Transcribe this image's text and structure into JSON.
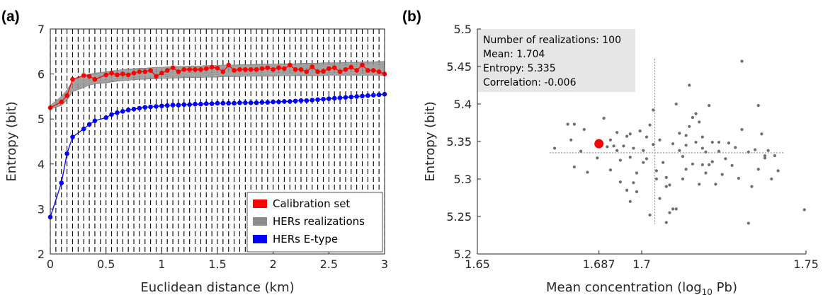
{
  "chart_data": [
    {
      "panel": "(a)",
      "type": "line",
      "xlabel": "Euclidean distance (km)",
      "ylabel": "Entropy (bit)",
      "xlim": [
        0,
        3
      ],
      "ylim": [
        2,
        7
      ],
      "xticks": [
        "0",
        "0.5",
        "1",
        "1.5",
        "2",
        "2.5",
        "3"
      ],
      "yticks": [
        "2",
        "3",
        "4",
        "5",
        "6",
        "7"
      ],
      "grid": "vertical dashed lines at each lag",
      "legend_position": "bottom-right",
      "x": [
        0.0,
        0.1,
        0.15,
        0.2,
        0.3,
        0.35,
        0.4,
        0.5,
        0.55,
        0.6,
        0.65,
        0.7,
        0.75,
        0.8,
        0.85,
        0.9,
        0.95,
        1.0,
        1.05,
        1.1,
        1.15,
        1.2,
        1.25,
        1.3,
        1.35,
        1.4,
        1.45,
        1.5,
        1.55,
        1.6,
        1.65,
        1.7,
        1.75,
        1.8,
        1.85,
        1.9,
        1.95,
        2.0,
        2.05,
        2.1,
        2.15,
        2.2,
        2.25,
        2.3,
        2.35,
        2.4,
        2.45,
        2.5,
        2.55,
        2.6,
        2.65,
        2.7,
        2.75,
        2.8,
        2.85,
        2.9,
        2.95,
        3.0
      ],
      "series": [
        {
          "name": "Calibration set",
          "color": "#ff0000",
          "values": [
            5.25,
            5.38,
            5.52,
            5.88,
            5.97,
            5.95,
            5.88,
            5.98,
            6.02,
            5.98,
            6.0,
            5.98,
            6.02,
            6.05,
            6.05,
            6.08,
            5.95,
            6.02,
            6.08,
            6.14,
            6.05,
            6.1,
            6.1,
            6.1,
            6.1,
            6.12,
            6.15,
            6.13,
            6.05,
            6.2,
            6.08,
            6.1,
            6.1,
            6.1,
            6.1,
            6.12,
            6.14,
            6.1,
            6.14,
            6.12,
            6.2,
            6.1,
            6.1,
            6.05,
            6.16,
            6.05,
            6.06,
            6.12,
            6.14,
            6.05,
            6.1,
            6.15,
            6.08,
            6.2,
            6.08,
            6.08,
            6.05,
            6.0
          ]
        },
        {
          "name": "HERs realizations",
          "color": "#8c8c8c",
          "band_lower": [
            5.22,
            5.3,
            5.42,
            5.6,
            5.7,
            5.75,
            5.78,
            5.8,
            5.82,
            5.84,
            5.85,
            5.86,
            5.87,
            5.88,
            5.88,
            5.89,
            5.89,
            5.9,
            5.9,
            5.91,
            5.91,
            5.92,
            5.92,
            5.92,
            5.92,
            5.93,
            5.93,
            5.93,
            5.94,
            5.94,
            5.94,
            5.94,
            5.95,
            5.95,
            5.95,
            5.95,
            5.95,
            5.95,
            5.96,
            5.96,
            5.96,
            5.96,
            5.96,
            5.96,
            5.96,
            5.96,
            5.96,
            5.97,
            5.97,
            5.97,
            5.97,
            5.97,
            5.97,
            5.97,
            5.97,
            5.97,
            5.97,
            5.97
          ],
          "band_upper": [
            5.3,
            5.5,
            5.65,
            5.85,
            5.97,
            6.0,
            6.02,
            6.05,
            6.07,
            6.08,
            6.1,
            6.11,
            6.12,
            6.13,
            6.13,
            6.14,
            6.15,
            6.15,
            6.16,
            6.16,
            6.17,
            6.17,
            6.18,
            6.18,
            6.18,
            6.19,
            6.19,
            6.19,
            6.2,
            6.2,
            6.2,
            6.21,
            6.21,
            6.21,
            6.22,
            6.22,
            6.22,
            6.22,
            6.23,
            6.23,
            6.23,
            6.23,
            6.24,
            6.24,
            6.24,
            6.24,
            6.25,
            6.25,
            6.25,
            6.25,
            6.26,
            6.26,
            6.26,
            6.27,
            6.27,
            6.27,
            6.28,
            6.28
          ]
        },
        {
          "name": "HERs E-type",
          "color": "#0000ff",
          "values": [
            2.82,
            3.58,
            4.23,
            4.6,
            4.78,
            4.88,
            4.96,
            5.03,
            5.1,
            5.14,
            5.17,
            5.2,
            5.22,
            5.24,
            5.26,
            5.27,
            5.28,
            5.29,
            5.3,
            5.31,
            5.31,
            5.32,
            5.32,
            5.33,
            5.33,
            5.34,
            5.34,
            5.35,
            5.35,
            5.35,
            5.35,
            5.36,
            5.36,
            5.36,
            5.36,
            5.37,
            5.37,
            5.38,
            5.38,
            5.39,
            5.39,
            5.4,
            5.41,
            5.41,
            5.42,
            5.43,
            5.44,
            5.45,
            5.46,
            5.47,
            5.48,
            5.49,
            5.5,
            5.51,
            5.52,
            5.53,
            5.54,
            5.55
          ]
        }
      ]
    },
    {
      "panel": "(b)",
      "type": "scatter",
      "xlabel_main": "Mean concentration (log",
      "xlabel_sub": "10",
      "xlabel_tail": " Pb)",
      "ylabel": "Entropy (bit)",
      "xlim": [
        1.65,
        1.75
      ],
      "ylim": [
        5.2,
        5.5
      ],
      "xticks": [
        "1.65",
        "1.687",
        "1.7",
        "1.75"
      ],
      "yticks": [
        "5.2",
        "5.25",
        "5.3",
        "5.35",
        "5.4",
        "5.45",
        "5.5"
      ],
      "stats_box": [
        "Number of realizations: 100",
        "Mean: 1.704",
        "Entropy: 5.335",
        "Correlation: -0.006"
      ],
      "mean_lines": {
        "x": 1.704,
        "y": 5.335
      },
      "highlight": {
        "x": 1.687,
        "y": 5.347,
        "color": "#ff0000"
      },
      "point_color": "#6e6e6e",
      "points": [
        [
          1.6735,
          5.341
        ],
        [
          1.6775,
          5.373
        ],
        [
          1.6795,
          5.373
        ],
        [
          1.6785,
          5.352
        ],
        [
          1.6815,
          5.337
        ],
        [
          1.6825,
          5.366
        ],
        [
          1.6795,
          5.316
        ],
        [
          1.6835,
          5.309
        ],
        [
          1.6865,
          5.328
        ],
        [
          1.6885,
          5.381
        ],
        [
          1.6905,
          5.352
        ],
        [
          1.6915,
          5.344
        ],
        [
          1.6925,
          5.362
        ],
        [
          1.6935,
          5.325
        ],
        [
          1.6955,
          5.357
        ],
        [
          1.6965,
          5.36
        ],
        [
          1.6975,
          5.341
        ],
        [
          1.6985,
          5.308
        ],
        [
          1.6955,
          5.285
        ],
        [
          1.6995,
          5.364
        ],
        [
          1.7005,
          5.338
        ],
        [
          1.7015,
          5.356
        ],
        [
          1.7025,
          5.372
        ],
        [
          1.7035,
          5.392
        ],
        [
          1.7015,
          5.327
        ],
        [
          1.6975,
          5.295
        ],
        [
          1.6935,
          5.296
        ],
        [
          1.7045,
          5.311
        ],
        [
          1.7065,
          5.322
        ],
        [
          1.7075,
          5.302
        ],
        [
          1.6985,
          5.283
        ],
        [
          1.6965,
          5.27
        ],
        [
          1.7025,
          5.252
        ],
        [
          1.7055,
          5.274
        ],
        [
          1.7045,
          5.3
        ],
        [
          1.7075,
          5.29
        ],
        [
          1.7085,
          5.292
        ],
        [
          1.7075,
          5.242
        ],
        [
          1.7085,
          5.255
        ],
        [
          1.7095,
          5.26
        ],
        [
          1.7105,
          5.26
        ],
        [
          1.7095,
          5.347
        ],
        [
          1.7115,
          5.338
        ],
        [
          1.7125,
          5.33
        ],
        [
          1.7135,
          5.358
        ],
        [
          1.7145,
          5.37
        ],
        [
          1.7155,
          5.382
        ],
        [
          1.7165,
          5.387
        ],
        [
          1.7175,
          5.376
        ],
        [
          1.7165,
          5.349
        ],
        [
          1.7185,
          5.341
        ],
        [
          1.7195,
          5.336
        ],
        [
          1.7155,
          5.32
        ],
        [
          1.7135,
          5.313
        ],
        [
          1.7125,
          5.3
        ],
        [
          1.7175,
          5.293
        ],
        [
          1.7185,
          5.319
        ],
        [
          1.7205,
          5.319
        ],
        [
          1.7225,
          5.293
        ],
        [
          1.7215,
          5.349
        ],
        [
          1.7235,
          5.349
        ],
        [
          1.7255,
          5.327
        ],
        [
          1.7265,
          5.348
        ],
        [
          1.7285,
          5.342
        ],
        [
          1.7305,
          5.366
        ],
        [
          1.7325,
          5.336
        ],
        [
          1.7345,
          5.339
        ],
        [
          1.7365,
          5.36
        ],
        [
          1.7385,
          5.338
        ],
        [
          1.7405,
          5.331
        ],
        [
          1.7415,
          5.311
        ],
        [
          1.7395,
          5.3
        ],
        [
          1.7375,
          5.328
        ],
        [
          1.7355,
          5.313
        ],
        [
          1.7335,
          5.29
        ],
        [
          1.7325,
          5.241
        ],
        [
          1.7355,
          5.398
        ],
        [
          1.7375,
          5.331
        ],
        [
          1.7295,
          5.301
        ],
        [
          1.7275,
          5.318
        ],
        [
          1.7245,
          5.306
        ],
        [
          1.7235,
          5.337
        ],
        [
          1.7215,
          5.323
        ],
        [
          1.7195,
          5.308
        ],
        [
          1.7105,
          5.4
        ],
        [
          1.7145,
          5.425
        ],
        [
          1.7205,
          5.398
        ],
        [
          1.7305,
          5.457
        ],
        [
          1.7495,
          5.259
        ],
        [
          1.6905,
          5.312
        ],
        [
          1.6895,
          5.343
        ],
        [
          1.6925,
          5.338
        ],
        [
          1.6945,
          5.344
        ],
        [
          1.6965,
          5.329
        ],
        [
          1.7005,
          5.322
        ],
        [
          1.7035,
          5.346
        ],
        [
          1.7055,
          5.352
        ],
        [
          1.7115,
          5.361
        ],
        [
          1.7135,
          5.345
        ],
        [
          1.7185,
          5.356
        ]
      ]
    }
  ],
  "legend": {
    "items": [
      {
        "label": "Calibration set",
        "color": "#ff0000"
      },
      {
        "label": "HERs realizations",
        "color": "#8c8c8c"
      },
      {
        "label": "HERs E-type",
        "color": "#0000ff"
      }
    ]
  }
}
